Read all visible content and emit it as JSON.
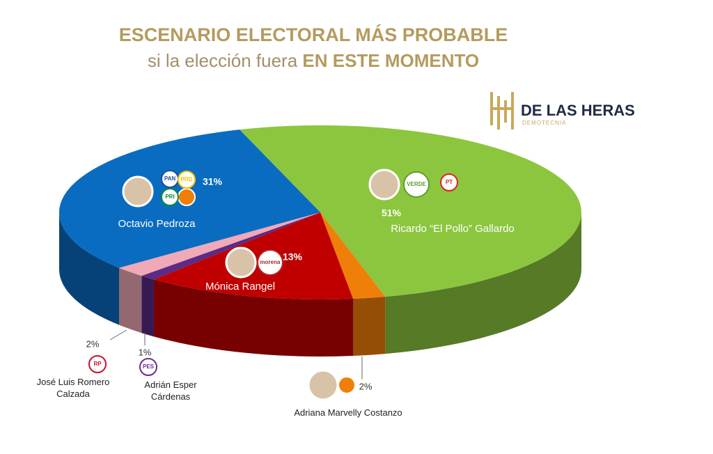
{
  "chart_data": {
    "type": "pie",
    "title": "ESCENARIO ELECTORAL MÁS PROBABLE",
    "subtitle": "si la elección fuera",
    "subtitle_emphasis": "EN ESTE MOMENTO",
    "logo": {
      "name": "DE LAS HERAS",
      "tagline": "DEMOTECNIA"
    },
    "categories": [
      "Ricardo “El Pollo” Gallardo",
      "Adriana Marvelly Costanzo",
      "Mónica Rangel",
      "Adrián Esper Cárdenas",
      "José Luis Romero Calzada",
      "Octavio Pedroza"
    ],
    "values": [
      51,
      2,
      13,
      1,
      2,
      31
    ],
    "value_labels": [
      "51%",
      "2%",
      "13%",
      "1%",
      "2%",
      "31%"
    ],
    "colors": [
      "#8cc63e",
      "#f07f0a",
      "#c00000",
      "#5b2b86",
      "#f0a9b6",
      "#0a6cc0"
    ],
    "parties": [
      [
        "VERDE",
        "PT"
      ],
      [],
      [
        "morena"
      ],
      [
        "PES"
      ],
      [
        "RP"
      ],
      [
        "PAN",
        "PRD",
        "PRI"
      ]
    ]
  }
}
